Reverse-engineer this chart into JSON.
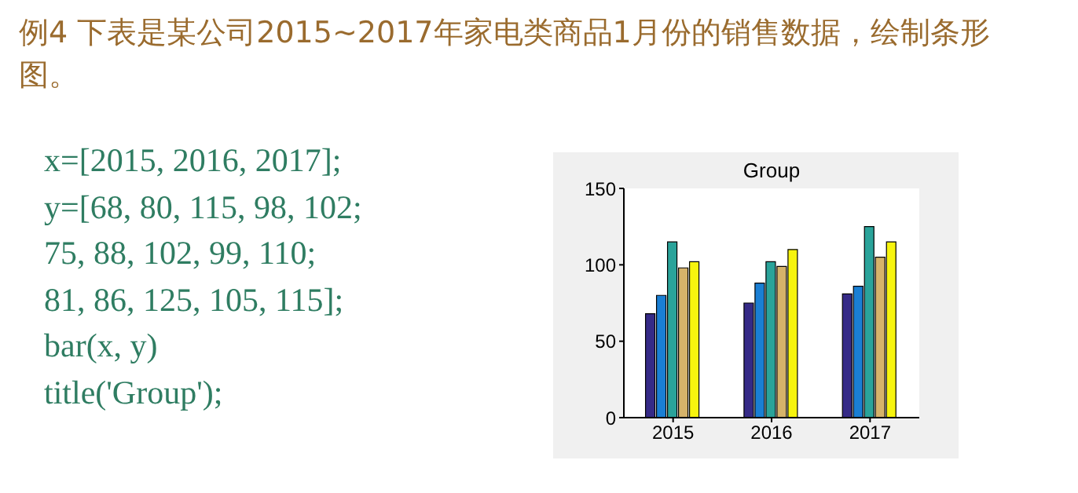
{
  "chart_data": {
    "type": "bar",
    "title": "Group",
    "categories": [
      "2015",
      "2016",
      "2017"
    ],
    "series": [
      {
        "color": "#352a87",
        "values": [
          68,
          75,
          81
        ]
      },
      {
        "color": "#1a7fd4",
        "values": [
          80,
          88,
          86
        ]
      },
      {
        "color": "#2aa39a",
        "values": [
          115,
          102,
          125
        ]
      },
      {
        "color": "#d6b36a",
        "values": [
          98,
          99,
          105
        ]
      },
      {
        "color": "#f7f40e",
        "values": [
          102,
          110,
          115
        ]
      }
    ],
    "ylim": [
      0,
      150
    ],
    "yticks": [
      0,
      50,
      100,
      150
    ],
    "grid": false,
    "legend": false,
    "annotations": [
      "例4  下表是某公司2015~2017年家电类商品1月份的销售数据，绘制条形图。",
      "x=[2015, 2016, 2017];",
      "y=[68, 80, 115, 98, 102;",
      "75, 88, 102, 99, 110;",
      "81, 86, 125, 105, 115];",
      "bar(x, y)",
      "title('Group');"
    ]
  }
}
